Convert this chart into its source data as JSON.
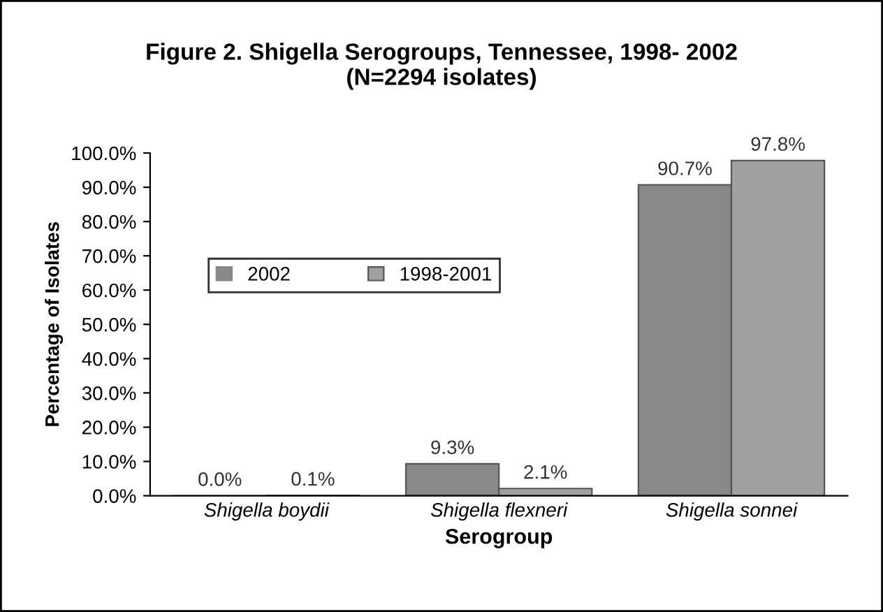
{
  "chart_data": {
    "type": "bar",
    "title": "Figure 2. Shigella Serogroups, Tennessee, 1998- 2002\n(N=2294 isolates)",
    "xlabel": "Serogroup",
    "ylabel": "Percentage of Isolates",
    "categories": [
      "Shigella boydii",
      "Shigella flexneri",
      "Shigella sonnei"
    ],
    "series": [
      {
        "name": "2002",
        "color": "#888888",
        "values": [
          0.0,
          9.3,
          90.7
        ],
        "value_labels": [
          "0.0%",
          "9.3%",
          "90.7%"
        ]
      },
      {
        "name": "1998-2001",
        "color": "#a0a0a0",
        "values": [
          0.1,
          2.1,
          97.8
        ],
        "value_labels": [
          "0.1%",
          "2.1%",
          "97.8%"
        ]
      }
    ],
    "ylim": [
      0,
      100
    ],
    "yticks": [
      {
        "value": 0,
        "label": "0.0%"
      },
      {
        "value": 10,
        "label": "10.0%"
      },
      {
        "value": 20,
        "label": "20.0%"
      },
      {
        "value": 30,
        "label": "30.0%"
      },
      {
        "value": 40,
        "label": "40.0%"
      },
      {
        "value": 50,
        "label": "50.0%"
      },
      {
        "value": 60,
        "label": "60.0%"
      },
      {
        "value": 70,
        "label": "70.0%"
      },
      {
        "value": 80,
        "label": "80.0%"
      },
      {
        "value": 90,
        "label": "90.0%"
      },
      {
        "value": 100,
        "label": "100.0%"
      }
    ],
    "legend": "top left",
    "grid": false
  }
}
